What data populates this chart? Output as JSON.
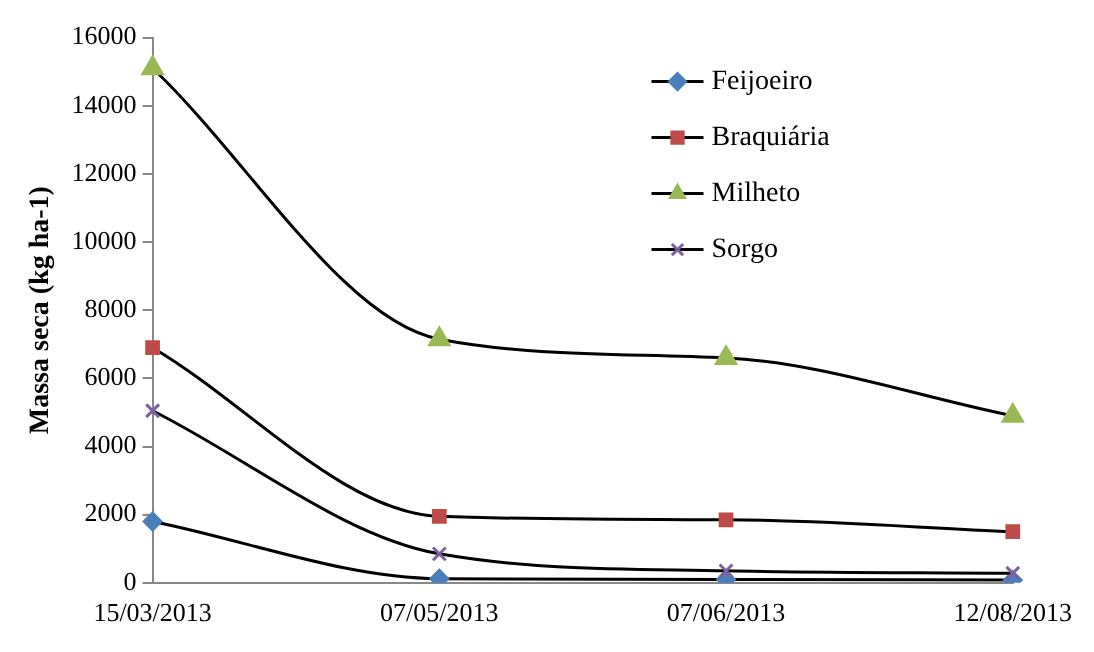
{
  "chart_data": {
    "type": "line",
    "ylabel": "Massa seca (kg ha-1)",
    "categories": [
      "15/03/2013",
      "07/05/2013",
      "07/06/2013",
      "12/08/2013"
    ],
    "series": [
      {
        "name": "Feijoeiro",
        "color": "#4a7ebb",
        "marker": "diamond",
        "values": [
          1800,
          120,
          100,
          80
        ]
      },
      {
        "name": "Braquiária",
        "color": "#be4b48",
        "marker": "square",
        "values": [
          6900,
          1950,
          1850,
          1500
        ]
      },
      {
        "name": "Milheto",
        "color": "#98b954",
        "marker": "triangle",
        "values": [
          15100,
          7150,
          6600,
          4900
        ]
      },
      {
        "name": "Sorgo",
        "color": "#7d60a0",
        "marker": "cross",
        "values": [
          5050,
          850,
          350,
          280
        ]
      }
    ],
    "ylim": [
      0,
      16000
    ],
    "yticks": [
      0,
      2000,
      4000,
      6000,
      8000,
      10000,
      12000,
      14000,
      16000
    ],
    "grid": false,
    "legend": "top right",
    "line_style": "solid"
  }
}
